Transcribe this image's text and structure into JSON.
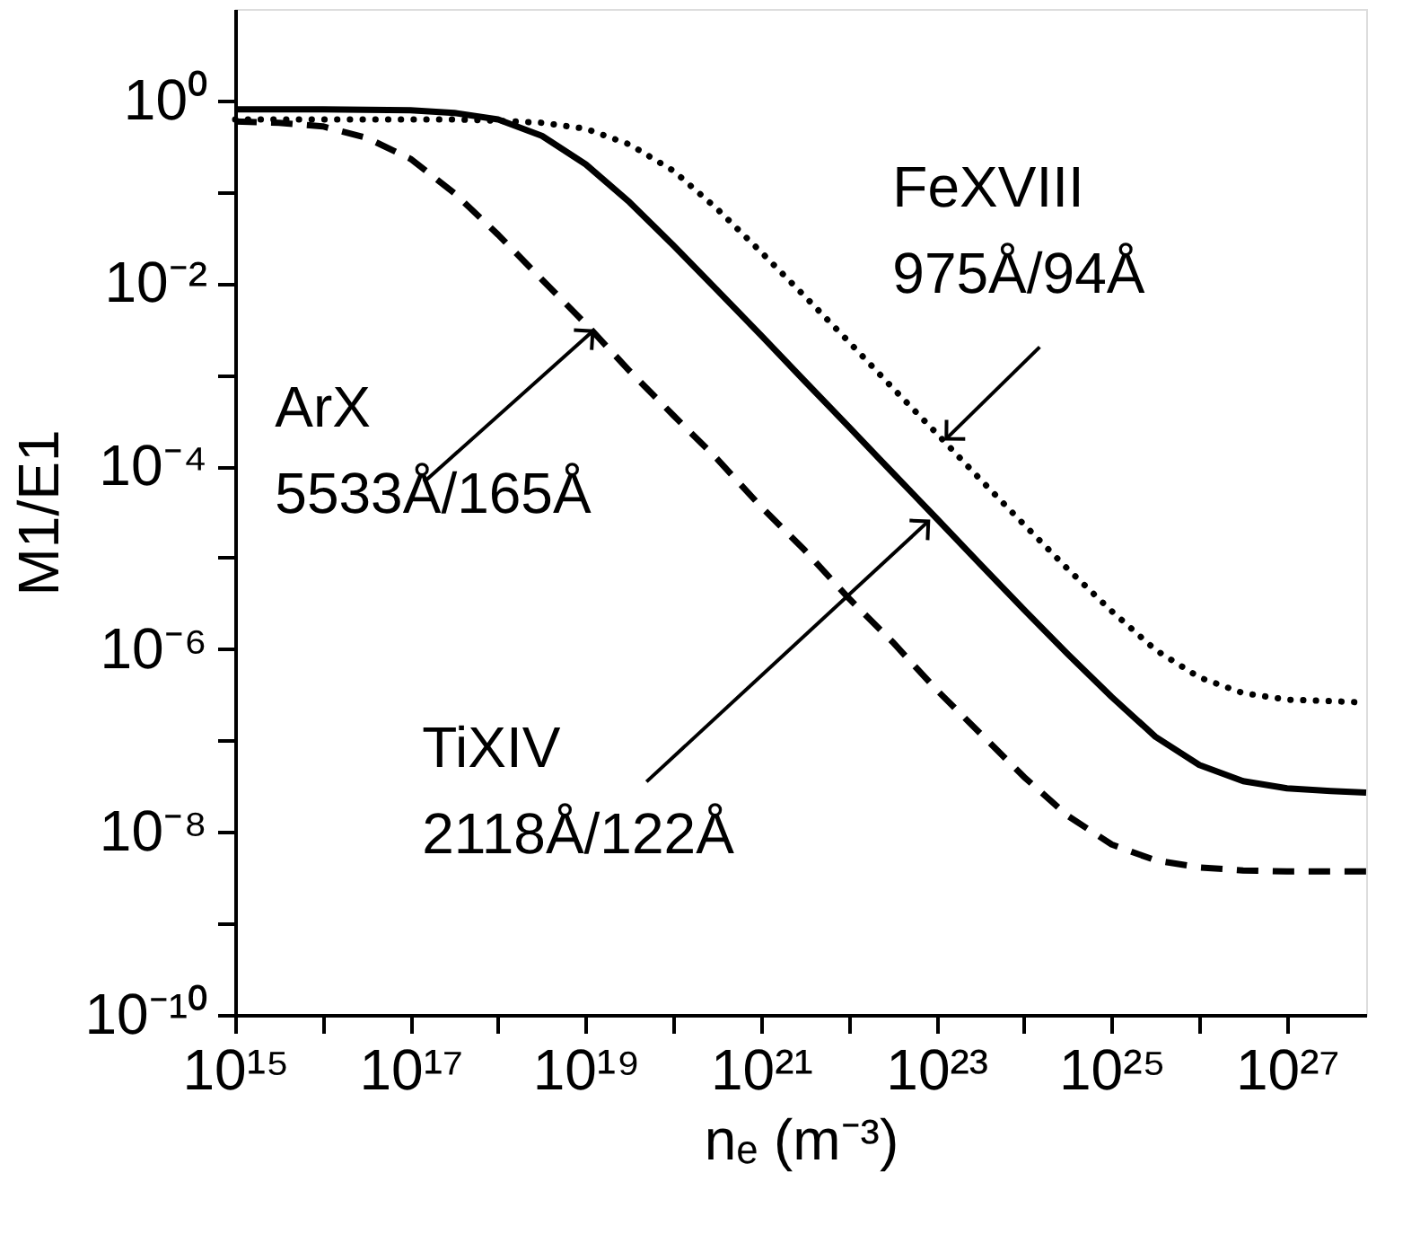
{
  "chart_data": {
    "type": "line",
    "xlabel": "nₑ (m⁻³)",
    "ylabel": "M1/E1",
    "log": "xy",
    "xlim": [
      1000000000000000.0,
      8e+27
    ],
    "ylim": [
      1e-10,
      10
    ],
    "xticks": [
      {
        "value": 1000000000000000.0,
        "label": "10¹⁵"
      },
      {
        "value": 1e+16,
        "label": null
      },
      {
        "value": 1e+17,
        "label": "10¹⁷"
      },
      {
        "value": 1e+18,
        "label": null
      },
      {
        "value": 1e+19,
        "label": "10¹⁹"
      },
      {
        "value": 1e+20,
        "label": null
      },
      {
        "value": 1e+21,
        "label": "10²¹"
      },
      {
        "value": 1e+22,
        "label": null
      },
      {
        "value": 1e+23,
        "label": "10²³"
      },
      {
        "value": 1e+24,
        "label": null
      },
      {
        "value": 1e+25,
        "label": "10²⁵"
      },
      {
        "value": 1e+26,
        "label": null
      },
      {
        "value": 1e+27,
        "label": "10²⁷"
      }
    ],
    "yticks": [
      {
        "value": 1,
        "label": "10⁰"
      },
      {
        "value": 0.1,
        "label": null
      },
      {
        "value": 0.01,
        "label": "10⁻²"
      },
      {
        "value": 0.001,
        "label": null
      },
      {
        "value": 0.0001,
        "label": "10⁻⁴"
      },
      {
        "value": 1e-05,
        "label": null
      },
      {
        "value": 1e-06,
        "label": "10⁻⁶"
      },
      {
        "value": 1e-07,
        "label": null
      },
      {
        "value": 1e-08,
        "label": "10⁻⁸"
      },
      {
        "value": 1e-09,
        "label": null
      },
      {
        "value": 1e-10,
        "label": "10⁻¹⁰"
      }
    ],
    "x": [
      1000000000000000.0,
      3160000000000000.0,
      1e+16,
      3.16e+16,
      1e+17,
      3.16e+17,
      1e+18,
      3.16e+18,
      1e+19,
      3.16e+19,
      1e+20,
      3.16e+20,
      1e+21,
      3.16e+21,
      1e+22,
      3.16e+22,
      1e+23,
      3.16e+23,
      1e+24,
      3.16e+24,
      1e+25,
      3.16e+25,
      1e+26,
      3.16e+26,
      1e+27,
      3.16e+27,
      8e+27
    ],
    "series": [
      {
        "color": "#000000",
        "line_style": "dashed",
        "values": [
          0.59,
          0.57,
          0.52,
          0.39,
          0.23,
          0.097,
          0.034,
          0.011,
          0.0036,
          0.0011,
          0.00036,
          0.00012,
          3.6e-05,
          1.2e-05,
          3.6e-06,
          1.2e-06,
          3.6e-07,
          1.2e-07,
          4e-08,
          1.5e-08,
          7.3e-09,
          4.9e-09,
          4.1e-09,
          3.8e-09,
          3.7e-09,
          3.7e-09,
          3.7e-09
        ]
      },
      {
        "color": "#000000",
        "line_style": "solid",
        "values": [
          0.8,
          0.8,
          0.8,
          0.79,
          0.78,
          0.73,
          0.62,
          0.41,
          0.2,
          0.077,
          0.026,
          0.0084,
          0.0027,
          0.00085,
          0.00027,
          8.5e-05,
          2.7e-05,
          8.5e-06,
          2.7e-06,
          8.8e-07,
          3e-07,
          1.1e-07,
          5.4e-08,
          3.6e-08,
          3e-08,
          2.8e-08,
          2.7e-08
        ]
      },
      {
        "color": "#000000",
        "line_style": "dotted",
        "values": [
          0.62,
          0.62,
          0.62,
          0.62,
          0.62,
          0.62,
          0.6,
          0.57,
          0.49,
          0.33,
          0.17,
          0.065,
          0.022,
          0.0072,
          0.0023,
          0.00072,
          0.00023,
          7.2e-05,
          2.3e-05,
          7.5e-06,
          2.6e-06,
          9.8e-07,
          4.9e-07,
          3.3e-07,
          2.8e-07,
          2.7e-07,
          2.6e-07
        ]
      }
    ],
    "annotations": [
      {
        "text": "ArX\n5533Å/165Å",
        "x": 1.2e+19,
        "y": 0.003
      },
      {
        "text": "FeXVIII\n975Å/94Å",
        "x": 1.3e+23,
        "y": 0.0002
      },
      {
        "text": "TiXIV\n2118Å/122Å",
        "x": 8.1e+22,
        "y": 2.5e-05
      }
    ]
  }
}
